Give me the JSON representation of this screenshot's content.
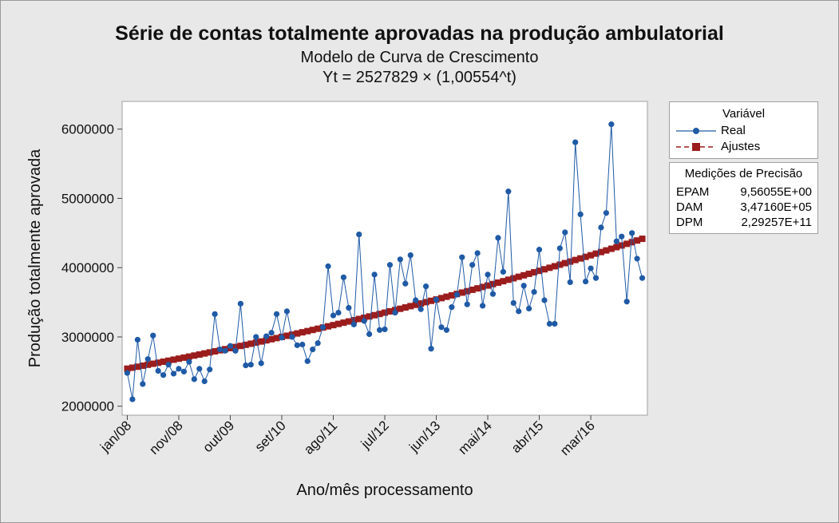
{
  "titles": {
    "main": "Série de contas totalmente aprovadas na produção ambulatorial",
    "subtitle": "Modelo de Curva de Crescimento",
    "equation": "Yt = 2527829 × (1,00554^t)"
  },
  "legend": {
    "title": "Variável",
    "items": [
      {
        "label": "Real",
        "color": "#1f5aa6"
      },
      {
        "label": "Ajustes",
        "color": "#9b1c1c"
      }
    ]
  },
  "accuracy": {
    "title": "Medições de Precisão",
    "rows": [
      {
        "key": "EPAM",
        "value": "9,56055E+00"
      },
      {
        "key": "DAM",
        "value": "3,47160E+05"
      },
      {
        "key": "DPM",
        "value": "2,29257E+11"
      }
    ]
  },
  "chart_data": {
    "type": "line",
    "xlabel": "Ano/mês processamento",
    "ylabel": "Produção totalmente aprovada",
    "x_ticks": [
      {
        "t": 1,
        "label": "jan/08"
      },
      {
        "t": 11,
        "label": "nov/08"
      },
      {
        "t": 21,
        "label": "out/09"
      },
      {
        "t": 31,
        "label": "set/10"
      },
      {
        "t": 41,
        "label": "ago/11"
      },
      {
        "t": 51,
        "label": "jul/12"
      },
      {
        "t": 61,
        "label": "jun/13"
      },
      {
        "t": 71,
        "label": "mai/14"
      },
      {
        "t": 81,
        "label": "abr/15"
      },
      {
        "t": 91,
        "label": "mar/16"
      }
    ],
    "y_ticks": [
      2000000,
      3000000,
      4000000,
      5000000,
      6000000
    ],
    "ylim": [
      1870000,
      6400000
    ],
    "xlim": [
      0,
      102
    ],
    "fit": {
      "a": 2527829,
      "b": 1.00554,
      "n": 101
    },
    "series": [
      {
        "name": "Real",
        "values": [
          2480000,
          2100000,
          2960000,
          2320000,
          2680000,
          3020000,
          2510000,
          2450000,
          2600000,
          2470000,
          2540000,
          2500000,
          2640000,
          2390000,
          2540000,
          2360000,
          2530000,
          3330000,
          2820000,
          2800000,
          2870000,
          2800000,
          3480000,
          2590000,
          2600000,
          3000000,
          2620000,
          3010000,
          3060000,
          3330000,
          2990000,
          3370000,
          3000000,
          2880000,
          2890000,
          2650000,
          2820000,
          2910000,
          3140000,
          4020000,
          3310000,
          3350000,
          3860000,
          3420000,
          3180000,
          4480000,
          3230000,
          3040000,
          3900000,
          3100000,
          3110000,
          4040000,
          3350000,
          4120000,
          3770000,
          4180000,
          3530000,
          3400000,
          3730000,
          2830000,
          3540000,
          3140000,
          3100000,
          3430000,
          3610000,
          4150000,
          3470000,
          4040000,
          4210000,
          3450000,
          3900000,
          3620000,
          4430000,
          3940000,
          5100000,
          3490000,
          3370000,
          3740000,
          3410000,
          3650000,
          4260000,
          3530000,
          3190000,
          3190000,
          4280000,
          4510000,
          3790000,
          5810000,
          4770000,
          3800000,
          3990000,
          3850000,
          4580000,
          4790000,
          6070000,
          4380000,
          4450000,
          3510000,
          4500000,
          4130000,
          3850000
        ]
      }
    ]
  }
}
